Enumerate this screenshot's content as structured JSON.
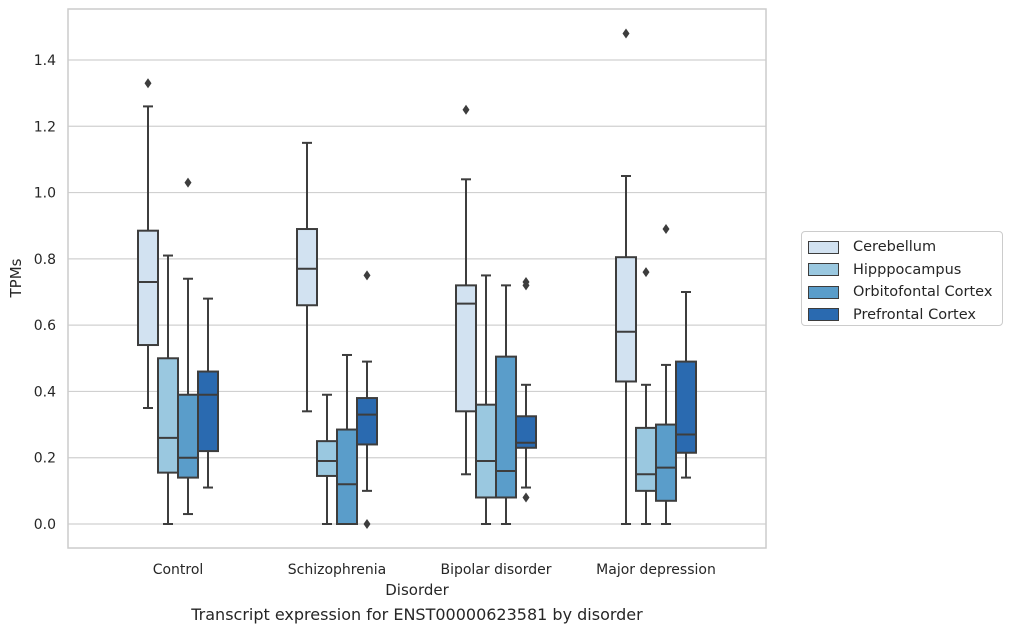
{
  "caption": "Transcript expression for ENST00000623581 by disorder",
  "chart_data": {
    "type": "box",
    "xlabel": "Disorder",
    "ylabel": "TPMs",
    "ylim": [
      -0.07,
      1.56
    ],
    "yticks": [
      0.0,
      0.2,
      0.4,
      0.6,
      0.8,
      1.0,
      1.2,
      1.4
    ],
    "grid": "horizontal",
    "legend_position": "right",
    "categories": [
      "Control",
      "Schizophrenia",
      "Bipolar disorder",
      "Major depression"
    ],
    "series": [
      {
        "name": "Cerebellum",
        "color": "#d2e2f1",
        "boxes": [
          {
            "whislo": 0.35,
            "q1": 0.54,
            "med": 0.73,
            "q3": 0.885,
            "whishi": 1.26,
            "fliers": [
              1.33
            ]
          },
          {
            "whislo": 0.34,
            "q1": 0.66,
            "med": 0.77,
            "q3": 0.89,
            "whishi": 1.15,
            "fliers": []
          },
          {
            "whislo": 0.15,
            "q1": 0.34,
            "med": 0.665,
            "q3": 0.72,
            "whishi": 1.04,
            "fliers": [
              1.25
            ]
          },
          {
            "whislo": 0.0,
            "q1": 0.43,
            "med": 0.58,
            "q3": 0.805,
            "whishi": 1.05,
            "fliers": [
              1.48
            ]
          }
        ]
      },
      {
        "name": "Hipppocampus",
        "color": "#9ac8e0",
        "boxes": [
          {
            "whislo": 0.0,
            "q1": 0.155,
            "med": 0.26,
            "q3": 0.5,
            "whishi": 0.81,
            "fliers": []
          },
          {
            "whislo": 0.0,
            "q1": 0.145,
            "med": 0.19,
            "q3": 0.25,
            "whishi": 0.39,
            "fliers": []
          },
          {
            "whislo": 0.0,
            "q1": 0.08,
            "med": 0.19,
            "q3": 0.36,
            "whishi": 0.75,
            "fliers": []
          },
          {
            "whislo": 0.0,
            "q1": 0.1,
            "med": 0.15,
            "q3": 0.29,
            "whishi": 0.42,
            "fliers": [
              0.76
            ]
          }
        ]
      },
      {
        "name": "Orbitofontal Cortex",
        "color": "#5a9dca",
        "boxes": [
          {
            "whislo": 0.03,
            "q1": 0.14,
            "med": 0.2,
            "q3": 0.39,
            "whishi": 0.74,
            "fliers": [
              1.03
            ]
          },
          {
            "whislo": 0.0,
            "q1": 0.0,
            "med": 0.12,
            "q3": 0.285,
            "whishi": 0.51,
            "fliers": []
          },
          {
            "whislo": 0.0,
            "q1": 0.08,
            "med": 0.16,
            "q3": 0.505,
            "whishi": 0.72,
            "fliers": []
          },
          {
            "whislo": 0.0,
            "q1": 0.07,
            "med": 0.17,
            "q3": 0.3,
            "whishi": 0.48,
            "fliers": [
              0.89
            ]
          }
        ]
      },
      {
        "name": "Prefrontal Cortex",
        "color": "#2a6ab0",
        "boxes": [
          {
            "whislo": 0.11,
            "q1": 0.22,
            "med": 0.39,
            "q3": 0.46,
            "whishi": 0.68,
            "fliers": []
          },
          {
            "whislo": 0.1,
            "q1": 0.24,
            "med": 0.33,
            "q3": 0.38,
            "whishi": 0.49,
            "fliers": [
              0.75,
              0.0
            ]
          },
          {
            "whislo": 0.11,
            "q1": 0.23,
            "med": 0.245,
            "q3": 0.325,
            "whishi": 0.42,
            "fliers": [
              0.73,
              0.72,
              0.08
            ]
          },
          {
            "whislo": 0.14,
            "q1": 0.215,
            "med": 0.27,
            "q3": 0.49,
            "whishi": 0.7,
            "fliers": []
          }
        ]
      }
    ]
  }
}
